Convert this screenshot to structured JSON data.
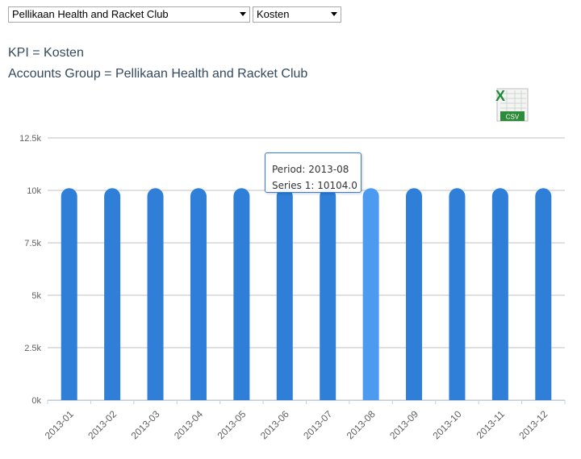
{
  "filters": {
    "account_group": "Pellikaan Health and Racket Club",
    "kpi": "Kosten"
  },
  "info": {
    "kpi_line": "KPI = Kosten",
    "group_line": "Accounts Group = Pellikaan Health and Racket Club"
  },
  "export": {
    "icon": "excel-csv-icon",
    "label": "CSV"
  },
  "tooltip": {
    "period_label": "Period: 2013-08",
    "series_label": "Series 1: 10104.0"
  },
  "colors": {
    "bar": "#2f7ed8",
    "bar_highlight": "#4c9bf0",
    "grid": "#c0c0c0",
    "axis_text": "#606060",
    "info_text": "#34495e"
  },
  "chart_data": {
    "type": "bar",
    "categories": [
      "2013-01",
      "2013-02",
      "2013-03",
      "2013-04",
      "2013-05",
      "2013-06",
      "2013-07",
      "2013-08",
      "2013-09",
      "2013-10",
      "2013-11",
      "2013-12"
    ],
    "series": [
      {
        "name": "Series 1",
        "values": [
          10104,
          10104,
          10104,
          10104,
          10104,
          10104,
          10104,
          10104,
          10104,
          10104,
          10104,
          10104
        ]
      }
    ],
    "highlighted_category": "2013-08",
    "y_ticks": [
      "0k",
      "2.5k",
      "5k",
      "7.5k",
      "10k",
      "12.5k"
    ],
    "ylim": [
      0,
      12500
    ],
    "grid": true,
    "legend": "none",
    "title": "",
    "xlabel": "",
    "ylabel": ""
  }
}
